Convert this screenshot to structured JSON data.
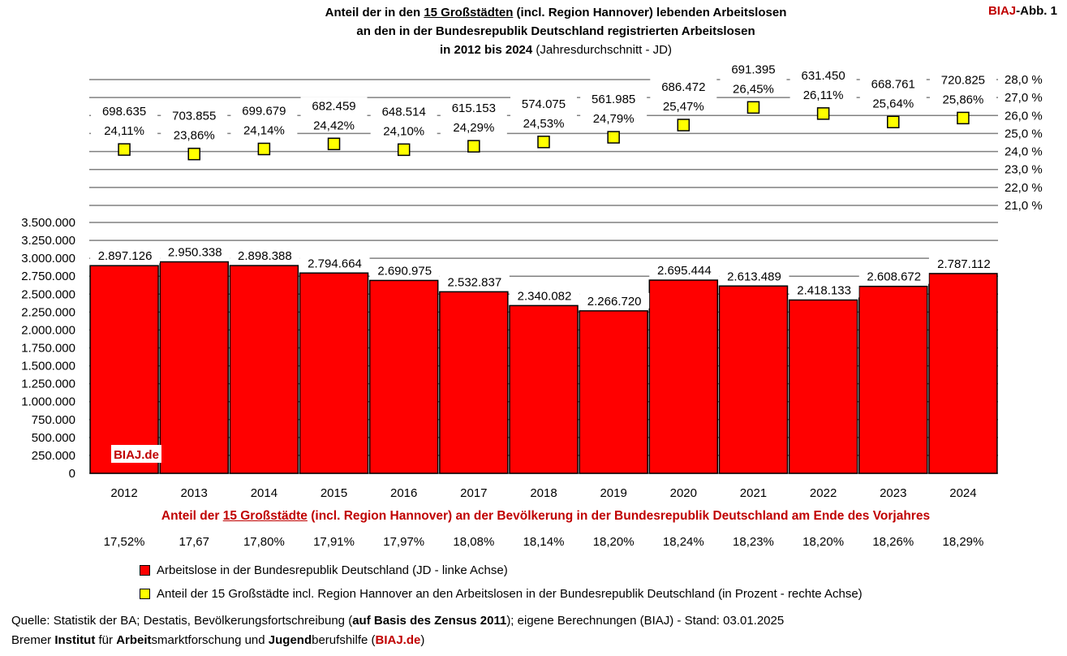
{
  "header": {
    "title_line1_a": "Anteil der in den ",
    "title_line1_u": "15 Großstädten",
    "title_line1_b": " (incl. Region Hannover) lebenden Arbeitslosen",
    "title_line2": "an den in der Bundesrepublik Deutschland  registrierten Arbeitslosen",
    "title_line3_a": "in 2012 bis 2024 ",
    "title_line3_b": "(Jahresdurchschnitt - JD)",
    "badge_red": "BIAJ",
    "badge_rest": "-Abb. 1"
  },
  "chart_data": {
    "type": "bar",
    "categories": [
      "2012",
      "2013",
      "2014",
      "2015",
      "2016",
      "2017",
      "2018",
      "2019",
      "2020",
      "2021",
      "2022",
      "2023",
      "2024"
    ],
    "series": [
      {
        "name": "Arbeitslose in der Bundesrepublik Deutschland (JD - linke Achse)",
        "axis": "left",
        "type": "bar",
        "color": "#ff0000",
        "values": [
          2897126,
          2950338,
          2898388,
          2794664,
          2690975,
          2532837,
          2340082,
          2266720,
          2695444,
          2613489,
          2418133,
          2608672,
          2787112
        ],
        "labels": [
          "2.897.126",
          "2.950.338",
          "2.898.388",
          "2.794.664",
          "2.690.975",
          "2.532.837",
          "2.340.082",
          "2.266.720",
          "2.695.444",
          "2.613.489",
          "2.418.133",
          "2.608.672",
          "2.787.112"
        ]
      },
      {
        "name": "Anteil der 15 Großstädte incl. Region Hannover an den Arbeitslosen in der Bundesrepublik Deutschland (in Prozent - rechte Achse)",
        "axis": "right",
        "type": "scatter",
        "color": "#ffff00",
        "values": [
          24.11,
          23.86,
          24.14,
          24.42,
          24.1,
          24.29,
          24.53,
          24.79,
          25.47,
          26.45,
          26.11,
          25.64,
          25.86
        ],
        "labels": [
          "24,11%",
          "23,86%",
          "24,14%",
          "24,42%",
          "24,10%",
          "24,29%",
          "24,53%",
          "24,79%",
          "25,47%",
          "26,45%",
          "26,11%",
          "25,64%",
          "25,86%"
        ],
        "counts": [
          698635,
          703855,
          699679,
          682459,
          648514,
          615153,
          574075,
          561985,
          686472,
          691395,
          631450,
          668761,
          720825
        ],
        "count_labels": [
          "698.635",
          "703.855",
          "699.679",
          "682.459",
          "648.514",
          "615.153",
          "574.075",
          "561.985",
          "686.472",
          "691.395",
          "631.450",
          "668.761",
          "720.825"
        ]
      }
    ],
    "left_axis": {
      "ylim": [
        0,
        3500000
      ],
      "ticks": [
        0,
        250000,
        500000,
        750000,
        1000000,
        1250000,
        1500000,
        1750000,
        2000000,
        2250000,
        2500000,
        2750000,
        3000000,
        3250000,
        3500000
      ],
      "tick_labels": [
        "0",
        "250.000",
        "500.000",
        "750.000",
        "1.000.000",
        "1.250.000",
        "1.500.000",
        "1.750.000",
        "2.000.000",
        "2.250.000",
        "2.500.000",
        "2.750.000",
        "3.000.000",
        "3.250.000",
        "3.500.000"
      ]
    },
    "right_axis": {
      "ylim": [
        21,
        28
      ],
      "ticks": [
        21,
        22,
        23,
        24,
        25,
        26,
        27,
        28
      ],
      "tick_labels": [
        "21,0 %",
        "22,0 %",
        "23,0 %",
        "24,0 %",
        "25,0 %",
        "26,0 %",
        "27,0 %",
        "28,0 %"
      ]
    },
    "grid": true,
    "legend_position": "bottom",
    "watermark": "BIAJ.de"
  },
  "population": {
    "title_a": "Anteil der ",
    "title_u": "15 Großstädte",
    "title_b": " (incl. Region Hannover) an der Bevölkerung in der Bundesrepublik Deutschland am Ende des Vorjahres",
    "values": [
      "17,52%",
      "17,67",
      "17,80%",
      "17,91%",
      "17,97%",
      "18,08%",
      "18,14%",
      "18,20%",
      "18,24%",
      "18,23%",
      "18,20%",
      "18,26%",
      "18,29%"
    ]
  },
  "legend": {
    "bar_label": "Arbeitslose in der Bundesrepublik Deutschland (JD - linke Achse)",
    "marker_label": "Anteil der 15 Großstädte incl. Region Hannover an den Arbeitslosen in der Bundesrepublik Deutschland (in Prozent - rechte Achse)",
    "bar_color": "#ff0000",
    "marker_color": "#ffff00"
  },
  "footer": {
    "source_a": "Quelle: Statistik der BA; Destatis, Bevölkerungsfortschreibung (",
    "source_b": "auf Basis des Zensus 2011",
    "source_c": "); eigene Berechnungen (BIAJ) - Stand: 03.01.2025",
    "org_1": "Bremer ",
    "org_2": "Institut",
    "org_3": " für ",
    "org_4": "Arbeit",
    "org_5": "smarktforschung und ",
    "org_6": "Jugend",
    "org_7": "berufshilfe (",
    "org_8": "BIAJ.de",
    "org_9": ")"
  }
}
